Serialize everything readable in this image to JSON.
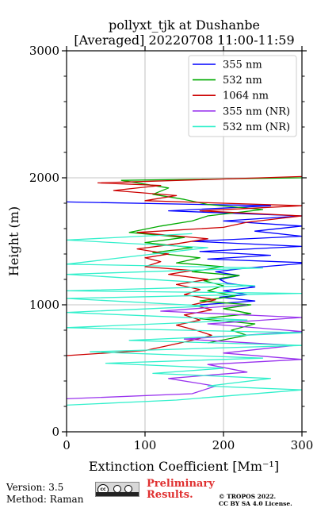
{
  "header": {
    "title_line1": "pollyxt_tjk at Dushanbe",
    "title_line2": "[Averaged] 20220708 11:00-11:59"
  },
  "footer": {
    "version": "Version: 3.5",
    "method": "Method: Raman",
    "prelim_line1": "Preliminary",
    "prelim_line2": "Results.",
    "copyright_line1": "© TROPOS 2022.",
    "copyright_line2": "CC BY SA 4.0 License.",
    "cc_badge_text": "cc",
    "cc_strip_labels": [
      "BY",
      "SA"
    ]
  },
  "chart_data": {
    "type": "line",
    "title": "pollyxt_tjk at Dushanbe [Averaged] 20220708 11:00-11:59",
    "xlabel": "Extinction Coefficient [Mm⁻¹]",
    "ylabel": "Height (m)",
    "xlim": [
      0,
      300
    ],
    "ylim": [
      0,
      3000
    ],
    "xticks": [
      0,
      100,
      200,
      300
    ],
    "yticks": [
      0,
      1000,
      2000,
      3000
    ],
    "grid": true,
    "legend_position": "top-right",
    "series": [
      {
        "name": "355 nm",
        "color": "#0000ff",
        "points": [
          [
            170,
            1000
          ],
          [
            240,
            1030
          ],
          [
            195,
            1060
          ],
          [
            230,
            1080
          ],
          [
            200,
            1110
          ],
          [
            240,
            1140
          ],
          [
            205,
            1170
          ],
          [
            195,
            1200
          ],
          [
            220,
            1230
          ],
          [
            190,
            1260
          ],
          [
            230,
            1290
          ],
          [
            310,
            1330
          ],
          [
            180,
            1360
          ],
          [
            260,
            1390
          ],
          [
            170,
            1420
          ],
          [
            300,
            1460
          ],
          [
            160,
            1500
          ],
          [
            300,
            1540
          ],
          [
            240,
            1580
          ],
          [
            300,
            1620
          ],
          [
            200,
            1660
          ],
          [
            300,
            1700
          ],
          [
            130,
            1740
          ],
          [
            260,
            1780
          ],
          [
            0,
            1810
          ]
        ]
      },
      {
        "name": "532 nm",
        "color": "#00aa00",
        "points": [
          [
            180,
            700
          ],
          [
            230,
            760
          ],
          [
            210,
            800
          ],
          [
            240,
            850
          ],
          [
            170,
            890
          ],
          [
            235,
            930
          ],
          [
            200,
            970
          ],
          [
            235,
            1000
          ],
          [
            170,
            1030
          ],
          [
            215,
            1070
          ],
          [
            180,
            1110
          ],
          [
            200,
            1150
          ],
          [
            175,
            1190
          ],
          [
            220,
            1230
          ],
          [
            160,
            1260
          ],
          [
            200,
            1300
          ],
          [
            140,
            1330
          ],
          [
            170,
            1370
          ],
          [
            110,
            1410
          ],
          [
            160,
            1450
          ],
          [
            100,
            1490
          ],
          [
            150,
            1530
          ],
          [
            80,
            1570
          ],
          [
            120,
            1620
          ],
          [
            160,
            1660
          ],
          [
            180,
            1700
          ],
          [
            250,
            1750
          ],
          [
            180,
            1790
          ],
          [
            150,
            1830
          ],
          [
            110,
            1870
          ],
          [
            130,
            1920
          ],
          [
            70,
            1980
          ],
          [
            300,
            2000
          ]
        ]
      },
      {
        "name": "1064 nm",
        "color": "#cc0000",
        "points": [
          [
            0,
            600
          ],
          [
            100,
            640
          ],
          [
            130,
            680
          ],
          [
            160,
            720
          ],
          [
            185,
            760
          ],
          [
            165,
            800
          ],
          [
            140,
            840
          ],
          [
            170,
            880
          ],
          [
            150,
            920
          ],
          [
            185,
            960
          ],
          [
            160,
            1000
          ],
          [
            190,
            1040
          ],
          [
            150,
            1080
          ],
          [
            170,
            1120
          ],
          [
            140,
            1160
          ],
          [
            180,
            1200
          ],
          [
            130,
            1240
          ],
          [
            160,
            1270
          ],
          [
            100,
            1300
          ],
          [
            120,
            1340
          ],
          [
            100,
            1370
          ],
          [
            130,
            1400
          ],
          [
            90,
            1440
          ],
          [
            140,
            1480
          ],
          [
            180,
            1520
          ],
          [
            90,
            1570
          ],
          [
            200,
            1610
          ],
          [
            230,
            1650
          ],
          [
            300,
            1700
          ],
          [
            170,
            1740
          ],
          [
            300,
            1780
          ],
          [
            100,
            1820
          ],
          [
            140,
            1860
          ],
          [
            60,
            1900
          ],
          [
            120,
            1940
          ],
          [
            40,
            1960
          ],
          [
            300,
            2010
          ]
        ]
      },
      {
        "name": "355 nm (NR)",
        "color": "#9933ee",
        "points": [
          [
            0,
            260
          ],
          [
            160,
            300
          ],
          [
            190,
            360
          ],
          [
            130,
            420
          ],
          [
            230,
            470
          ],
          [
            180,
            530
          ],
          [
            300,
            570
          ],
          [
            200,
            620
          ],
          [
            290,
            680
          ],
          [
            150,
            730
          ],
          [
            300,
            790
          ],
          [
            180,
            850
          ],
          [
            300,
            900
          ],
          [
            120,
            950
          ],
          [
            230,
            1000
          ]
        ]
      },
      {
        "name": "532 nm (NR)",
        "color": "#33f0cc",
        "points": [
          [
            0,
            210
          ],
          [
            140,
            250
          ],
          [
            300,
            330
          ],
          [
            180,
            360
          ],
          [
            260,
            420
          ],
          [
            110,
            460
          ],
          [
            200,
            500
          ],
          [
            50,
            540
          ],
          [
            250,
            580
          ],
          [
            30,
            630
          ],
          [
            300,
            680
          ],
          [
            80,
            720
          ],
          [
            300,
            780
          ],
          [
            0,
            820
          ],
          [
            230,
            880
          ],
          [
            0,
            940
          ],
          [
            180,
            990
          ],
          [
            0,
            1050
          ],
          [
            300,
            1090
          ],
          [
            0,
            1110
          ],
          [
            240,
            1150
          ],
          [
            0,
            1240
          ],
          [
            250,
            1290
          ],
          [
            0,
            1320
          ],
          [
            180,
            1450
          ],
          [
            0,
            1510
          ],
          [
            160,
            1560
          ]
        ]
      }
    ]
  }
}
